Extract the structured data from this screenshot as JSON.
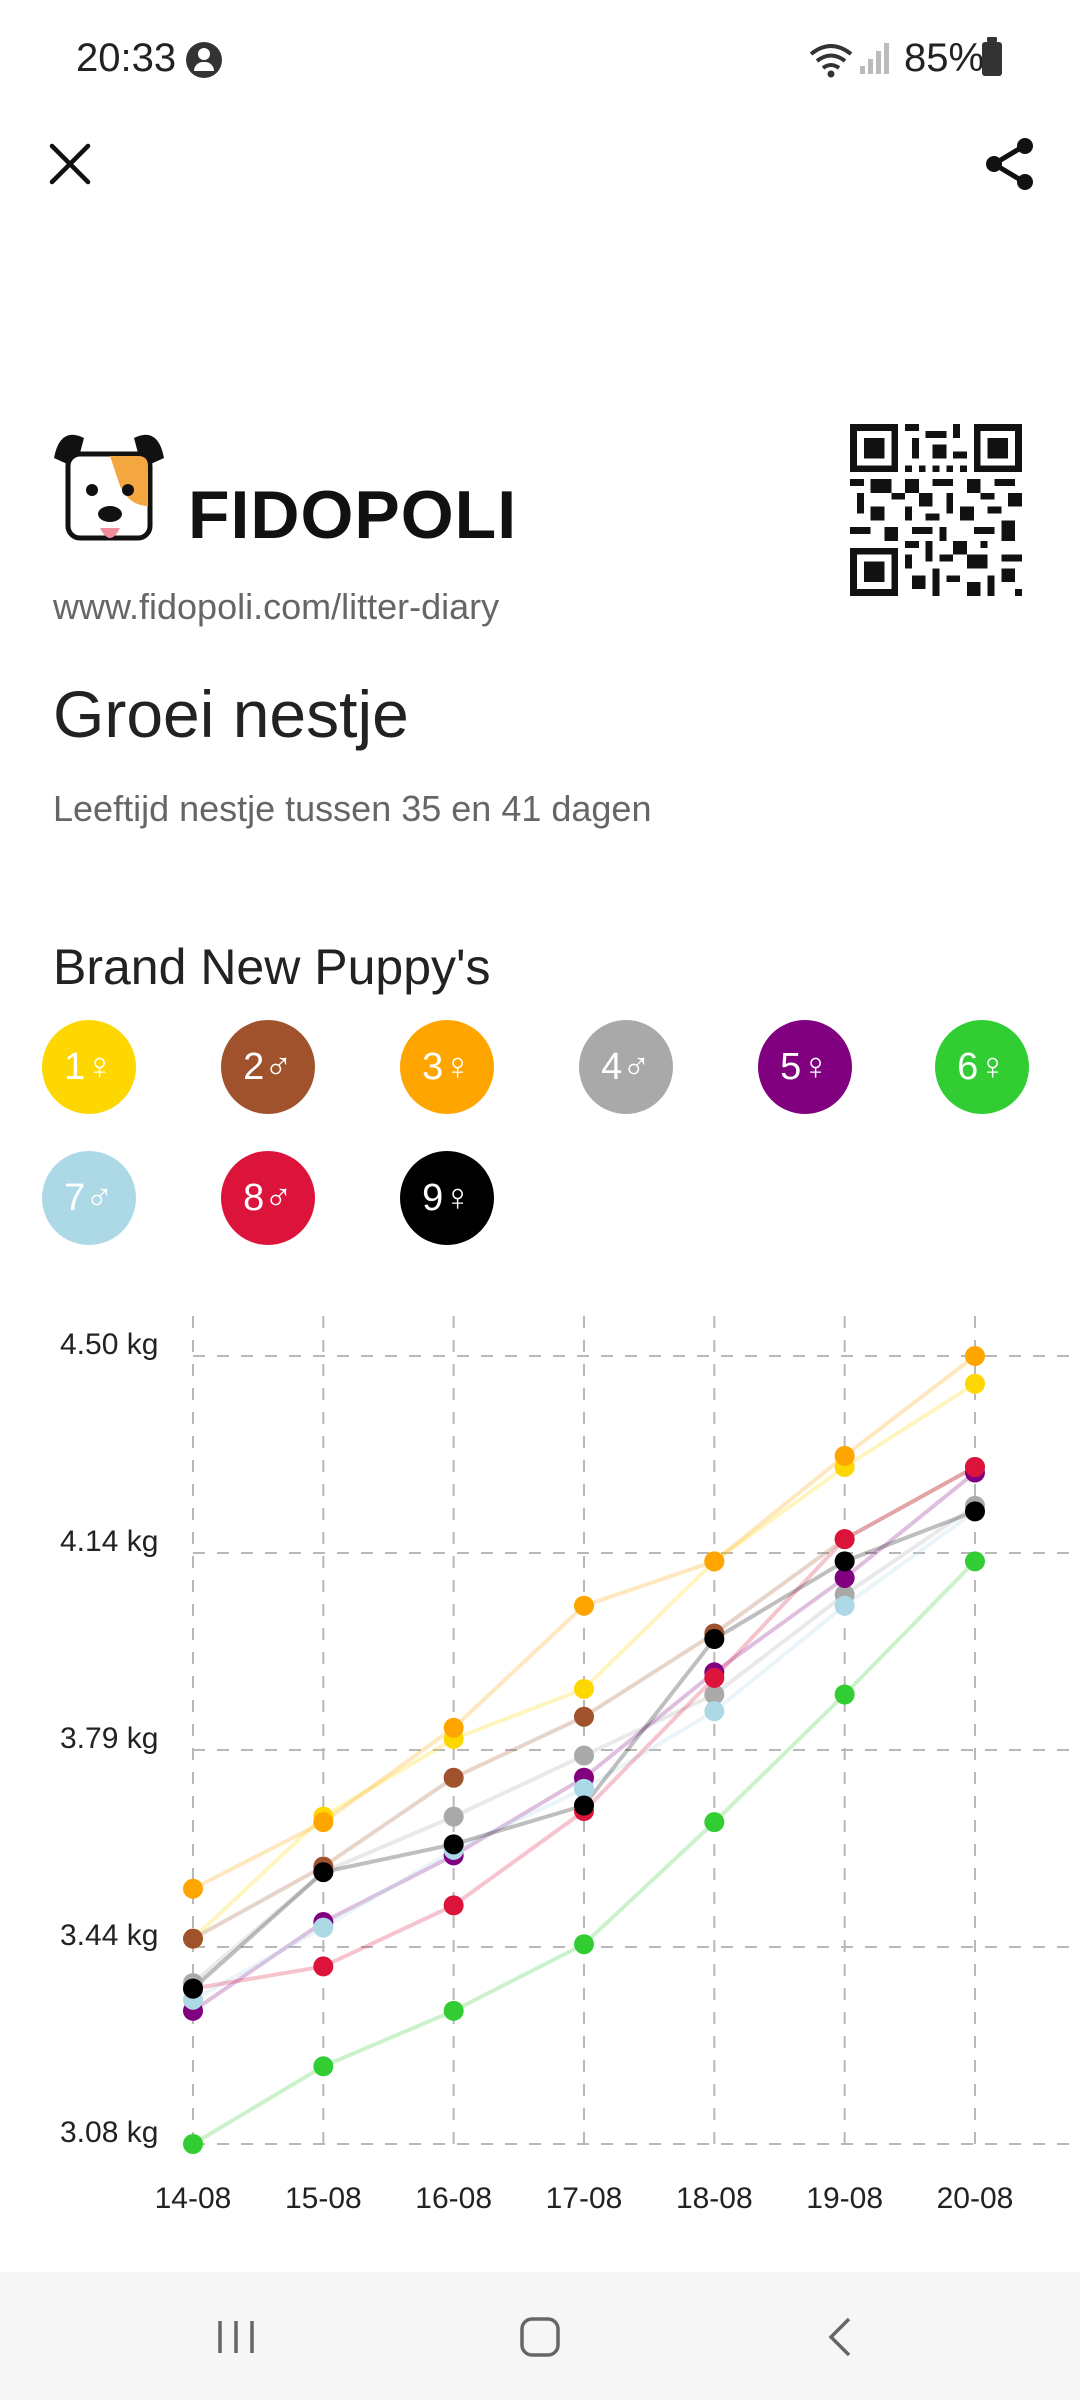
{
  "status_bar": {
    "time": "20:33",
    "battery": "85%"
  },
  "header": {
    "close_icon": "close-icon",
    "share_icon": "share-icon"
  },
  "brand": {
    "name": "FIDOPOLI",
    "url": "www.fidopoli.com/litter-diary",
    "logo_icon": "dog-logo"
  },
  "page": {
    "title": "Groei nestje",
    "subtitle": "Leeftijd nestje tussen 35 en 41 dagen"
  },
  "litter": {
    "name": "Brand New Puppy's",
    "puppies": [
      {
        "label": "1♀",
        "color": "#FFD700"
      },
      {
        "label": "2♂",
        "color": "#A0522D"
      },
      {
        "label": "3♀",
        "color": "#FFA500"
      },
      {
        "label": "4♂",
        "color": "#A9A9A9"
      },
      {
        "label": "5♀",
        "color": "#800080"
      },
      {
        "label": "6♀",
        "color": "#32CD32"
      },
      {
        "label": "7♂",
        "color": "#ADD8E6"
      },
      {
        "label": "8♂",
        "color": "#DC143C"
      },
      {
        "label": "9♀",
        "color": "#000000"
      }
    ]
  },
  "chart_data": {
    "type": "line",
    "categories": [
      "14-08",
      "15-08",
      "16-08",
      "17-08",
      "18-08",
      "19-08",
      "20-08"
    ],
    "y_ticks": [
      "4.50 kg",
      "4.14 kg",
      "3.79 kg",
      "3.44 kg",
      "3.08 kg"
    ],
    "ylim": [
      3.08,
      4.5
    ],
    "grid": true,
    "series": [
      {
        "name": "1♀",
        "color": "#FFD700",
        "values": [
          3.45,
          3.67,
          3.81,
          3.9,
          4.13,
          4.3,
          4.45
        ]
      },
      {
        "name": "2♂",
        "color": "#A0522D",
        "values": [
          3.45,
          3.58,
          3.74,
          3.85,
          4.0,
          4.17,
          4.3
        ]
      },
      {
        "name": "3♀",
        "color": "#FFA500",
        "values": [
          3.54,
          3.66,
          3.83,
          4.05,
          4.13,
          4.32,
          4.5
        ]
      },
      {
        "name": "4♂",
        "color": "#A9A9A9",
        "values": [
          3.37,
          3.57,
          3.67,
          3.78,
          3.89,
          4.07,
          4.23
        ]
      },
      {
        "name": "5♀",
        "color": "#800080",
        "values": [
          3.32,
          3.48,
          3.6,
          3.74,
          3.93,
          4.1,
          4.29
        ]
      },
      {
        "name": "6♀",
        "color": "#32CD32",
        "values": [
          3.08,
          3.22,
          3.32,
          3.44,
          3.66,
          3.89,
          4.13
        ]
      },
      {
        "name": "7♂",
        "color": "#ADD8E6",
        "values": [
          3.34,
          3.47,
          3.61,
          3.72,
          3.86,
          4.05,
          4.22
        ]
      },
      {
        "name": "8♂",
        "color": "#DC143C",
        "values": [
          3.36,
          3.4,
          3.51,
          3.68,
          3.92,
          4.17,
          4.3
        ]
      },
      {
        "name": "9♀",
        "color": "#000000",
        "values": [
          3.36,
          3.57,
          3.62,
          3.69,
          3.99,
          4.13,
          4.22
        ]
      }
    ]
  }
}
